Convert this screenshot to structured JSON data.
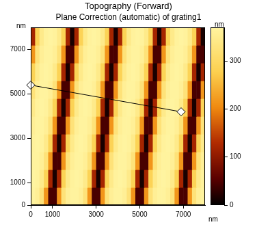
{
  "chart_data": {
    "type": "heatmap",
    "title": "Topography (Forward)",
    "subtitle": "Plane Correction (automatic) of grating1",
    "xlabel": "nm",
    "ylabel": "nm",
    "xlim": [
      0,
      8000
    ],
    "ylim": [
      0,
      8000
    ],
    "xticks": [
      0,
      1000,
      3000,
      5000,
      7000
    ],
    "yticks": [
      0,
      1000,
      3000,
      5000,
      7000
    ],
    "grid": false,
    "heatmap": {
      "xbins": [
        0,
        200,
        400,
        600,
        800,
        1000,
        1200,
        1400,
        1600,
        1800,
        2000,
        2200,
        2400,
        2600,
        2800,
        3000,
        3200,
        3400,
        3600,
        3800,
        4000,
        4200,
        4400,
        4600,
        4800,
        5000,
        5200,
        5400,
        5600,
        5800,
        6000,
        6200,
        6400,
        6600,
        6800,
        7000,
        7200,
        7400,
        7600,
        7800,
        8000
      ],
      "ybins": [
        0,
        800,
        1600,
        2400,
        3200,
        4000,
        4800,
        5600,
        6400,
        7200,
        8000
      ],
      "values": [
        [
          368,
          358,
          325,
          215,
          45,
          45,
          215,
          325,
          358,
          368,
          368,
          358,
          325,
          215,
          45,
          45,
          215,
          325,
          358,
          368,
          368,
          358,
          325,
          215,
          45,
          45,
          215,
          325,
          358,
          368,
          368,
          358,
          325,
          215,
          45,
          45,
          215,
          325,
          358,
          368
        ],
        [
          370,
          365,
          345,
          285,
          120,
          15,
          120,
          285,
          345,
          365,
          370,
          365,
          345,
          285,
          120,
          15,
          120,
          285,
          345,
          365,
          370,
          365,
          345,
          285,
          120,
          15,
          120,
          285,
          345,
          365,
          370,
          365,
          345,
          285,
          120,
          15,
          120,
          285,
          345,
          365
        ],
        [
          368,
          368,
          358,
          325,
          215,
          45,
          45,
          215,
          325,
          358,
          368,
          368,
          358,
          325,
          215,
          45,
          45,
          215,
          325,
          358,
          368,
          368,
          358,
          325,
          215,
          45,
          45,
          215,
          325,
          358,
          368,
          368,
          358,
          325,
          215,
          45,
          45,
          215,
          325,
          358
        ],
        [
          365,
          370,
          365,
          345,
          285,
          120,
          15,
          120,
          285,
          345,
          365,
          370,
          365,
          345,
          285,
          120,
          15,
          120,
          285,
          345,
          365,
          370,
          365,
          345,
          285,
          120,
          15,
          120,
          285,
          345,
          365,
          370,
          365,
          345,
          285,
          120,
          15,
          120,
          285,
          345
        ],
        [
          358,
          368,
          368,
          358,
          325,
          215,
          45,
          45,
          215,
          325,
          358,
          368,
          368,
          358,
          325,
          215,
          45,
          45,
          215,
          325,
          358,
          368,
          368,
          358,
          325,
          215,
          45,
          45,
          215,
          325,
          358,
          368,
          368,
          358,
          325,
          215,
          45,
          45,
          215,
          325
        ],
        [
          345,
          365,
          370,
          365,
          345,
          285,
          120,
          15,
          120,
          285,
          345,
          365,
          370,
          365,
          345,
          285,
          120,
          15,
          120,
          285,
          345,
          365,
          370,
          365,
          345,
          285,
          120,
          15,
          120,
          285,
          345,
          365,
          370,
          365,
          345,
          285,
          120,
          15,
          120,
          285
        ],
        [
          325,
          358,
          368,
          368,
          358,
          325,
          215,
          45,
          45,
          215,
          325,
          358,
          368,
          368,
          358,
          325,
          215,
          45,
          45,
          215,
          325,
          358,
          368,
          368,
          358,
          325,
          215,
          45,
          45,
          215,
          325,
          358,
          368,
          368,
          358,
          325,
          215,
          45,
          45,
          215
        ],
        [
          285,
          345,
          365,
          370,
          365,
          345,
          285,
          120,
          15,
          120,
          285,
          345,
          365,
          370,
          365,
          345,
          285,
          120,
          15,
          120,
          285,
          345,
          365,
          370,
          365,
          345,
          285,
          120,
          15,
          120,
          285,
          345,
          365,
          370,
          365,
          345,
          285,
          120,
          15,
          120
        ],
        [
          215,
          325,
          358,
          368,
          368,
          358,
          325,
          215,
          45,
          45,
          215,
          325,
          358,
          368,
          368,
          358,
          325,
          215,
          45,
          45,
          215,
          325,
          358,
          368,
          368,
          358,
          325,
          215,
          45,
          45,
          215,
          325,
          358,
          368,
          368,
          358,
          325,
          215,
          45,
          45
        ],
        [
          120,
          285,
          345,
          365,
          370,
          365,
          345,
          285,
          120,
          15,
          120,
          285,
          345,
          365,
          370,
          365,
          345,
          285,
          120,
          15,
          120,
          285,
          345,
          365,
          370,
          365,
          345,
          285,
          120,
          15,
          120,
          285,
          345,
          365,
          370,
          365,
          345,
          285,
          120,
          15
        ]
      ]
    },
    "colorbar": {
      "label": "nm",
      "range": [
        0,
        370
      ],
      "ticks": [
        0,
        100,
        200,
        300
      ]
    },
    "profile": {
      "x": [
        0,
        6900
      ],
      "y": [
        5400,
        4200
      ],
      "marker": "diamond",
      "color": "#000000"
    }
  }
}
